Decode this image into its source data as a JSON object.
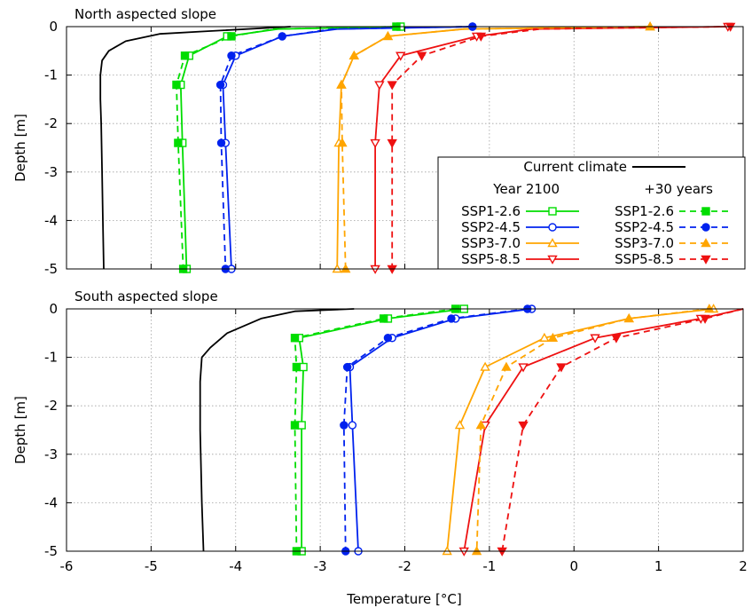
{
  "figure": {
    "xlabel": "Temperature [°C]",
    "legend": {
      "current_label": "Current climate",
      "col1_header": "Year 2100",
      "col2_header": "+30 years"
    }
  },
  "chart_data": [
    {
      "type": "line",
      "title": "North aspected slope",
      "xlabel": "Temperature [°C]",
      "ylabel": "Depth [m]",
      "xlim": [
        -6,
        2
      ],
      "ylim": [
        -5,
        0
      ],
      "x_ticks": [
        "-6",
        "-5",
        "-4",
        "-3",
        "-2",
        "-1",
        "0",
        "1",
        "2"
      ],
      "y_ticks": [
        "0",
        "-1",
        "-2",
        "-3",
        "-4",
        "-5"
      ],
      "grid": true,
      "legend_position": "bottom-right",
      "series": [
        {
          "name": "Current climate",
          "color": "#000000",
          "dash": "solid",
          "marker": "none",
          "x": [
            -3.35,
            -4.4,
            -4.9,
            -5.3,
            -5.5,
            -5.58,
            -5.6,
            -5.6,
            -5.59,
            -5.58,
            -5.57,
            -5.56
          ],
          "y": [
            0,
            -0.1,
            -0.15,
            -0.3,
            -0.5,
            -0.7,
            -1.0,
            -1.5,
            -2.0,
            -3.0,
            -4.0,
            -5.0
          ]
        },
        {
          "name": "SSP1-2.6",
          "group": "Year 2100",
          "color": "#00dd00",
          "dash": "solid",
          "marker": "square-open",
          "x": [
            -2.05,
            -3.5,
            -4.1,
            -4.55,
            -4.65,
            -4.63,
            -4.58
          ],
          "y": [
            0,
            -0.05,
            -0.2,
            -0.6,
            -1.2,
            -2.4,
            -5.0
          ],
          "marker_idx": [
            0,
            2,
            3,
            4,
            5,
            6
          ]
        },
        {
          "name": "SSP2-4.5",
          "group": "Year 2100",
          "color": "#0022ee",
          "dash": "solid",
          "marker": "circle-open",
          "x": [
            -1.2,
            -2.8,
            -3.45,
            -4.0,
            -4.15,
            -4.12,
            -4.05
          ],
          "y": [
            0,
            -0.05,
            -0.2,
            -0.6,
            -1.2,
            -2.4,
            -5.0
          ],
          "marker_idx": [
            0,
            2,
            3,
            4,
            5,
            6
          ]
        },
        {
          "name": "SSP3-7.0",
          "group": "Year 2100",
          "color": "#ffa500",
          "dash": "solid",
          "marker": "triangle-open",
          "x": [
            0.9,
            -1.3,
            -2.2,
            -2.6,
            -2.75,
            -2.78,
            -2.8
          ],
          "y": [
            0,
            -0.05,
            -0.2,
            -0.6,
            -1.2,
            -2.4,
            -5.0
          ],
          "marker_idx": [
            0,
            2,
            3,
            4,
            5,
            6
          ]
        },
        {
          "name": "SSP5-8.5",
          "group": "Year 2100",
          "color": "#ee1111",
          "dash": "solid",
          "marker": "triangle-down-open",
          "x": [
            1.82,
            -0.5,
            -1.15,
            -2.05,
            -2.3,
            -2.35,
            -2.35
          ],
          "y": [
            0,
            -0.05,
            -0.2,
            -0.6,
            -1.2,
            -2.4,
            -5.0
          ],
          "marker_idx": [
            0,
            2,
            3,
            4,
            5,
            6
          ]
        },
        {
          "name": "SSP1-2.6",
          "group": "+30 years",
          "color": "#00dd00",
          "dash": "dashed",
          "marker": "square-filled",
          "x": [
            -2.1,
            -3.55,
            -4.05,
            -4.6,
            -4.7,
            -4.68,
            -4.62
          ],
          "y": [
            0,
            -0.05,
            -0.2,
            -0.6,
            -1.2,
            -2.4,
            -5.0
          ],
          "marker_idx": [
            0,
            2,
            3,
            4,
            5,
            6
          ]
        },
        {
          "name": "SSP2-4.5",
          "group": "+30 years",
          "color": "#0022ee",
          "dash": "dashed",
          "marker": "circle-filled",
          "x": [
            -1.2,
            -2.85,
            -3.45,
            -4.05,
            -4.18,
            -4.17,
            -4.12
          ],
          "y": [
            0,
            -0.05,
            -0.2,
            -0.6,
            -1.2,
            -2.4,
            -5.0
          ],
          "marker_idx": [
            0,
            2,
            3,
            4,
            5,
            6
          ]
        },
        {
          "name": "SSP3-7.0",
          "group": "+30 years",
          "color": "#ffa500",
          "dash": "dashed",
          "marker": "triangle-filled",
          "x": [
            0.9,
            -1.3,
            -2.2,
            -2.6,
            -2.75,
            -2.74,
            -2.7
          ],
          "y": [
            0,
            -0.05,
            -0.2,
            -0.6,
            -1.2,
            -2.4,
            -5.0
          ],
          "marker_idx": [
            0,
            2,
            3,
            4,
            5,
            6
          ]
        },
        {
          "name": "SSP5-8.5",
          "group": "+30 years",
          "color": "#ee1111",
          "dash": "dashed",
          "marker": "triangle-down-filled",
          "x": [
            1.85,
            -0.4,
            -1.1,
            -1.8,
            -2.15,
            -2.15,
            -2.15
          ],
          "y": [
            0,
            -0.05,
            -0.2,
            -0.6,
            -1.2,
            -2.4,
            -5.0
          ],
          "marker_idx": [
            0,
            2,
            3,
            4,
            5,
            6
          ]
        }
      ]
    },
    {
      "type": "line",
      "title": "South aspected slope",
      "xlabel": "Temperature [°C]",
      "ylabel": "Depth [m]",
      "xlim": [
        -6,
        2
      ],
      "ylim": [
        -5,
        0
      ],
      "x_ticks": [
        "-6",
        "-5",
        "-4",
        "-3",
        "-2",
        "-1",
        "0",
        "1",
        "2"
      ],
      "y_ticks": [
        "0",
        "-1",
        "-2",
        "-3",
        "-4",
        "-5"
      ],
      "grid": true,
      "series": [
        {
          "name": "Current climate",
          "color": "#000000",
          "dash": "solid",
          "marker": "none",
          "x": [
            -2.6,
            -3.3,
            -3.7,
            -4.1,
            -4.3,
            -4.4,
            -4.42,
            -4.42,
            -4.4,
            -4.38
          ],
          "y": [
            0,
            -0.05,
            -0.2,
            -0.5,
            -0.8,
            -1.0,
            -1.5,
            -2.5,
            -4.0,
            -5.0
          ]
        },
        {
          "name": "SSP1-2.6",
          "group": "Year 2100",
          "color": "#00dd00",
          "dash": "solid",
          "marker": "square-open",
          "x": [
            -1.3,
            -2.2,
            -3.25,
            -3.2,
            -3.22,
            -3.22
          ],
          "y": [
            0,
            -0.2,
            -0.6,
            -1.2,
            -2.4,
            -5.0
          ],
          "marker_idx": [
            0,
            1,
            2,
            3,
            4,
            5
          ]
        },
        {
          "name": "SSP2-4.5",
          "group": "Year 2100",
          "color": "#0022ee",
          "dash": "solid",
          "marker": "circle-open",
          "x": [
            -0.5,
            -1.4,
            -2.15,
            -2.65,
            -2.62,
            -2.55
          ],
          "y": [
            0,
            -0.2,
            -0.6,
            -1.2,
            -2.4,
            -5.0
          ],
          "marker_idx": [
            0,
            1,
            2,
            3,
            4,
            5
          ]
        },
        {
          "name": "SSP3-7.0",
          "group": "Year 2100",
          "color": "#ffa500",
          "dash": "solid",
          "marker": "triangle-open",
          "x": [
            1.65,
            0.65,
            -0.35,
            -1.05,
            -1.35,
            -1.5
          ],
          "y": [
            0,
            -0.2,
            -0.6,
            -1.2,
            -2.4,
            -5.0
          ],
          "marker_idx": [
            0,
            1,
            2,
            3,
            4,
            5
          ]
        },
        {
          "name": "SSP5-8.5",
          "group": "Year 2100",
          "color": "#ee1111",
          "dash": "solid",
          "marker": "triangle-down-open",
          "x": [
            2.0,
            1.5,
            0.25,
            -0.6,
            -1.05,
            -1.3
          ],
          "y": [
            0,
            -0.2,
            -0.6,
            -1.2,
            -2.4,
            -5.0
          ],
          "marker_idx": [
            1,
            2,
            3,
            4,
            5
          ]
        },
        {
          "name": "SSP1-2.6",
          "group": "+30 years",
          "color": "#00dd00",
          "dash": "dashed",
          "marker": "square-filled",
          "x": [
            -1.4,
            -2.25,
            -3.3,
            -3.28,
            -3.3,
            -3.28
          ],
          "y": [
            0,
            -0.2,
            -0.6,
            -1.2,
            -2.4,
            -5.0
          ],
          "marker_idx": [
            0,
            1,
            2,
            3,
            4,
            5
          ]
        },
        {
          "name": "SSP2-4.5",
          "group": "+30 years",
          "color": "#0022ee",
          "dash": "dashed",
          "marker": "circle-filled",
          "x": [
            -0.55,
            -1.45,
            -2.2,
            -2.68,
            -2.72,
            -2.7
          ],
          "y": [
            0,
            -0.2,
            -0.6,
            -1.2,
            -2.4,
            -5.0
          ],
          "marker_idx": [
            0,
            1,
            2,
            3,
            4,
            5
          ]
        },
        {
          "name": "SSP3-7.0",
          "group": "+30 years",
          "color": "#ffa500",
          "dash": "dashed",
          "marker": "triangle-filled",
          "x": [
            1.6,
            0.65,
            -0.25,
            -0.8,
            -1.1,
            -1.15
          ],
          "y": [
            0,
            -0.2,
            -0.6,
            -1.2,
            -2.4,
            -5.0
          ],
          "marker_idx": [
            0,
            1,
            2,
            3,
            4,
            5
          ]
        },
        {
          "name": "SSP5-8.5",
          "group": "+30 years",
          "color": "#ee1111",
          "dash": "dashed",
          "marker": "triangle-down-filled",
          "x": [
            2.0,
            1.55,
            0.5,
            -0.15,
            -0.6,
            -0.85
          ],
          "y": [
            0,
            -0.2,
            -0.6,
            -1.2,
            -2.4,
            -5.0
          ],
          "marker_idx": [
            1,
            2,
            3,
            4,
            5
          ]
        }
      ]
    }
  ]
}
